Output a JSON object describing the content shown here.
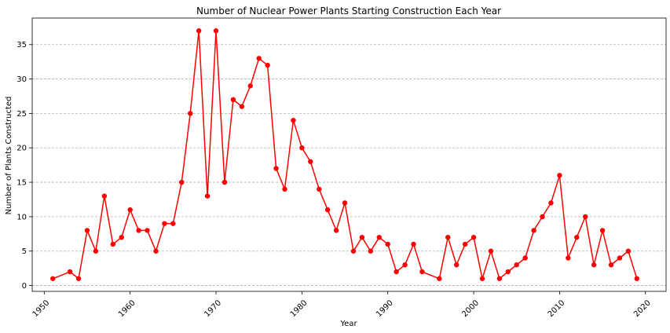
{
  "chart_data": {
    "type": "line",
    "title": "Number of Nuclear Power Plants Starting Construction Each Year",
    "xlabel": "Year",
    "ylabel": "Number of Plants Constructed",
    "x": [
      1951,
      1953,
      1954,
      1955,
      1956,
      1957,
      1958,
      1959,
      1960,
      1961,
      1962,
      1963,
      1964,
      1965,
      1966,
      1967,
      1968,
      1969,
      1970,
      1971,
      1972,
      1973,
      1974,
      1975,
      1976,
      1977,
      1978,
      1979,
      1980,
      1981,
      1982,
      1983,
      1984,
      1985,
      1986,
      1987,
      1988,
      1989,
      1990,
      1991,
      1992,
      1993,
      1994,
      1996,
      1997,
      1998,
      1999,
      2000,
      2001,
      2002,
      2003,
      2004,
      2005,
      2006,
      2007,
      2008,
      2009,
      2010,
      2011,
      2012,
      2013,
      2014,
      2015,
      2016,
      2017,
      2018,
      2019
    ],
    "y": [
      1,
      2,
      1,
      8,
      5,
      13,
      6,
      7,
      11,
      8,
      8,
      5,
      9,
      9,
      15,
      25,
      37,
      13,
      37,
      15,
      27,
      26,
      29,
      33,
      32,
      17,
      14,
      24,
      20,
      18,
      14,
      11,
      8,
      12,
      5,
      7,
      5,
      7,
      6,
      2,
      3,
      6,
      2,
      1,
      7,
      3,
      6,
      7,
      1,
      5,
      1,
      2,
      3,
      4,
      8,
      10,
      12,
      16,
      4,
      7,
      10,
      3,
      8,
      3,
      4,
      5,
      1
    ],
    "xlim": [
      1948.6,
      2022.4
    ],
    "ylim": [
      -0.85,
      38.85
    ],
    "xticks": [
      1950,
      1960,
      1970,
      1980,
      1990,
      2000,
      2010,
      2020
    ],
    "yticks": [
      0,
      5,
      10,
      15,
      20,
      25,
      30,
      35
    ],
    "grid": "y-dashed",
    "series_color": "#ff0000",
    "grid_color": "#b0b0b0"
  }
}
